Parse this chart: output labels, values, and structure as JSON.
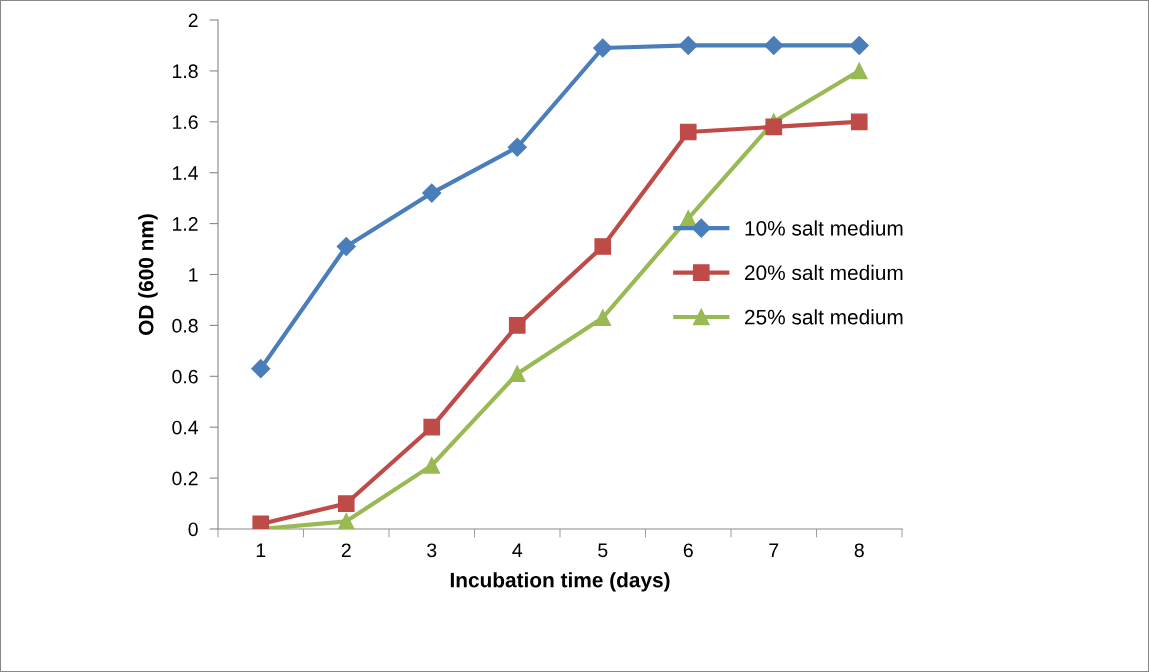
{
  "chart_data": {
    "type": "line",
    "xlabel": "Incubation time (days)",
    "ylabel": "OD (600 nm)",
    "categories": [
      "1",
      "2",
      "3",
      "4",
      "5",
      "6",
      "7",
      "8"
    ],
    "series": [
      {
        "name": "10% salt medium",
        "color": "#4a7ebb",
        "marker": "diamond",
        "values": [
          0.63,
          1.11,
          1.32,
          1.5,
          1.89,
          1.9,
          1.9,
          1.9
        ]
      },
      {
        "name": "20% salt medium",
        "color": "#be4b48",
        "marker": "square",
        "values": [
          0.02,
          0.1,
          0.4,
          0.8,
          1.11,
          1.56,
          1.58,
          1.6
        ]
      },
      {
        "name": "25% salt medium",
        "color": "#98b954",
        "marker": "triangle",
        "values": [
          0.0,
          0.03,
          0.25,
          0.61,
          0.83,
          1.22,
          1.6,
          1.8
        ]
      }
    ],
    "ylim": [
      0,
      2
    ],
    "yticks": [
      0,
      0.2,
      0.4,
      0.6,
      0.8,
      1,
      1.2,
      1.4,
      1.6,
      1.8,
      2
    ],
    "grid": false,
    "legend": "right",
    "line_style": "solid"
  }
}
